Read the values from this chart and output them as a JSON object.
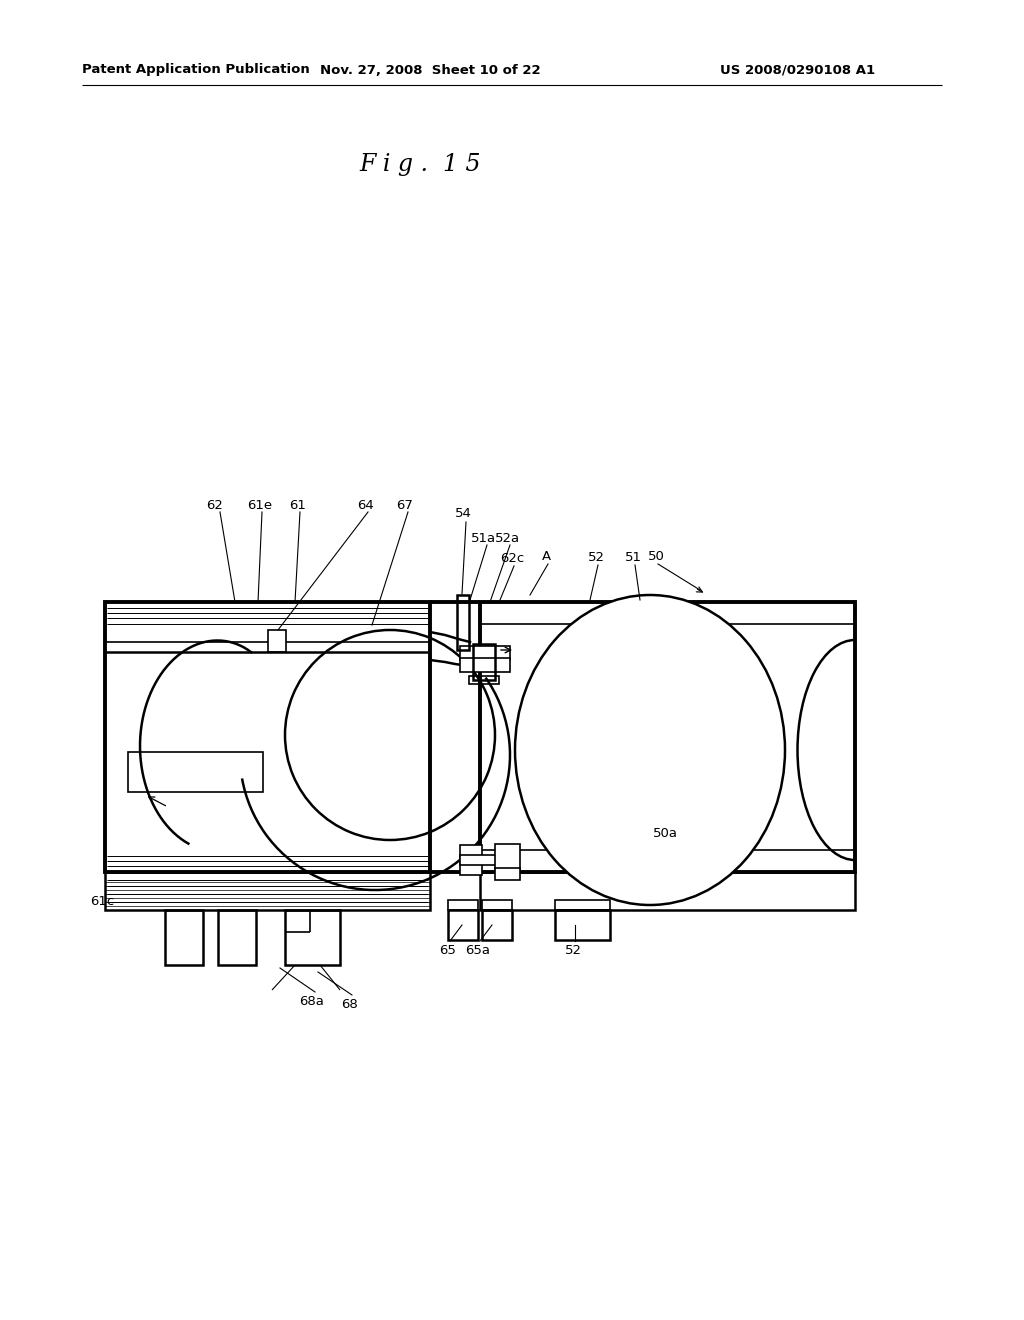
{
  "title": "F i g .  1 5",
  "header_left": "Patent Application Publication",
  "header_mid": "Nov. 27, 2008  Sheet 10 of 22",
  "header_right": "US 2008/0290108 A1",
  "bg_color": "#ffffff",
  "line_color": "#000000",
  "figure_title_fontsize": 17,
  "header_fontsize": 9.5,
  "label_fontsize": 9.5
}
